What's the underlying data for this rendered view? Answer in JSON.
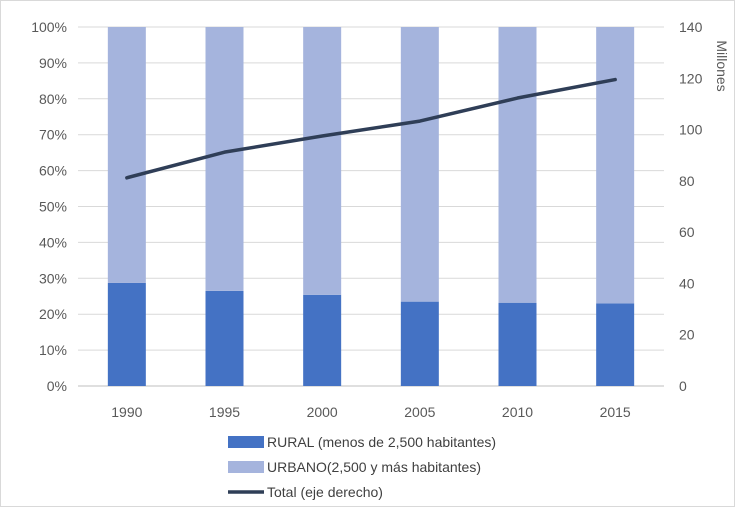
{
  "chart_data": {
    "type": "bar",
    "subtype": "stacked-percent-with-line",
    "categories": [
      "1990",
      "1995",
      "2000",
      "2005",
      "2010",
      "2015"
    ],
    "series": [
      {
        "name": "RURAL (menos de 2,500 habitantes)",
        "kind": "bar",
        "axis": "left",
        "values": [
          28.7,
          26.5,
          25.4,
          23.5,
          23.2,
          23.0
        ],
        "color": "#4472c4"
      },
      {
        "name": "URBANO(2,500 y más habitantes)",
        "kind": "bar",
        "axis": "left",
        "values": [
          71.3,
          73.5,
          74.6,
          76.5,
          76.8,
          77.0
        ],
        "color": "#a5b4dd"
      },
      {
        "name": "Total (eje derecho)",
        "kind": "line",
        "axis": "right",
        "values": [
          81.2,
          91.2,
          97.5,
          103.3,
          112.3,
          119.5
        ],
        "color": "#2f3e57"
      }
    ],
    "y_left": {
      "ticks": [
        "0%",
        "10%",
        "20%",
        "30%",
        "40%",
        "50%",
        "60%",
        "70%",
        "80%",
        "90%",
        "100%"
      ],
      "ylim": [
        0,
        100
      ]
    },
    "y_right": {
      "label": "Millones",
      "ticks": [
        "0",
        "20",
        "40",
        "60",
        "80",
        "100",
        "120",
        "140"
      ],
      "ylim": [
        0,
        140
      ]
    },
    "grid": true,
    "legend_position": "bottom"
  }
}
